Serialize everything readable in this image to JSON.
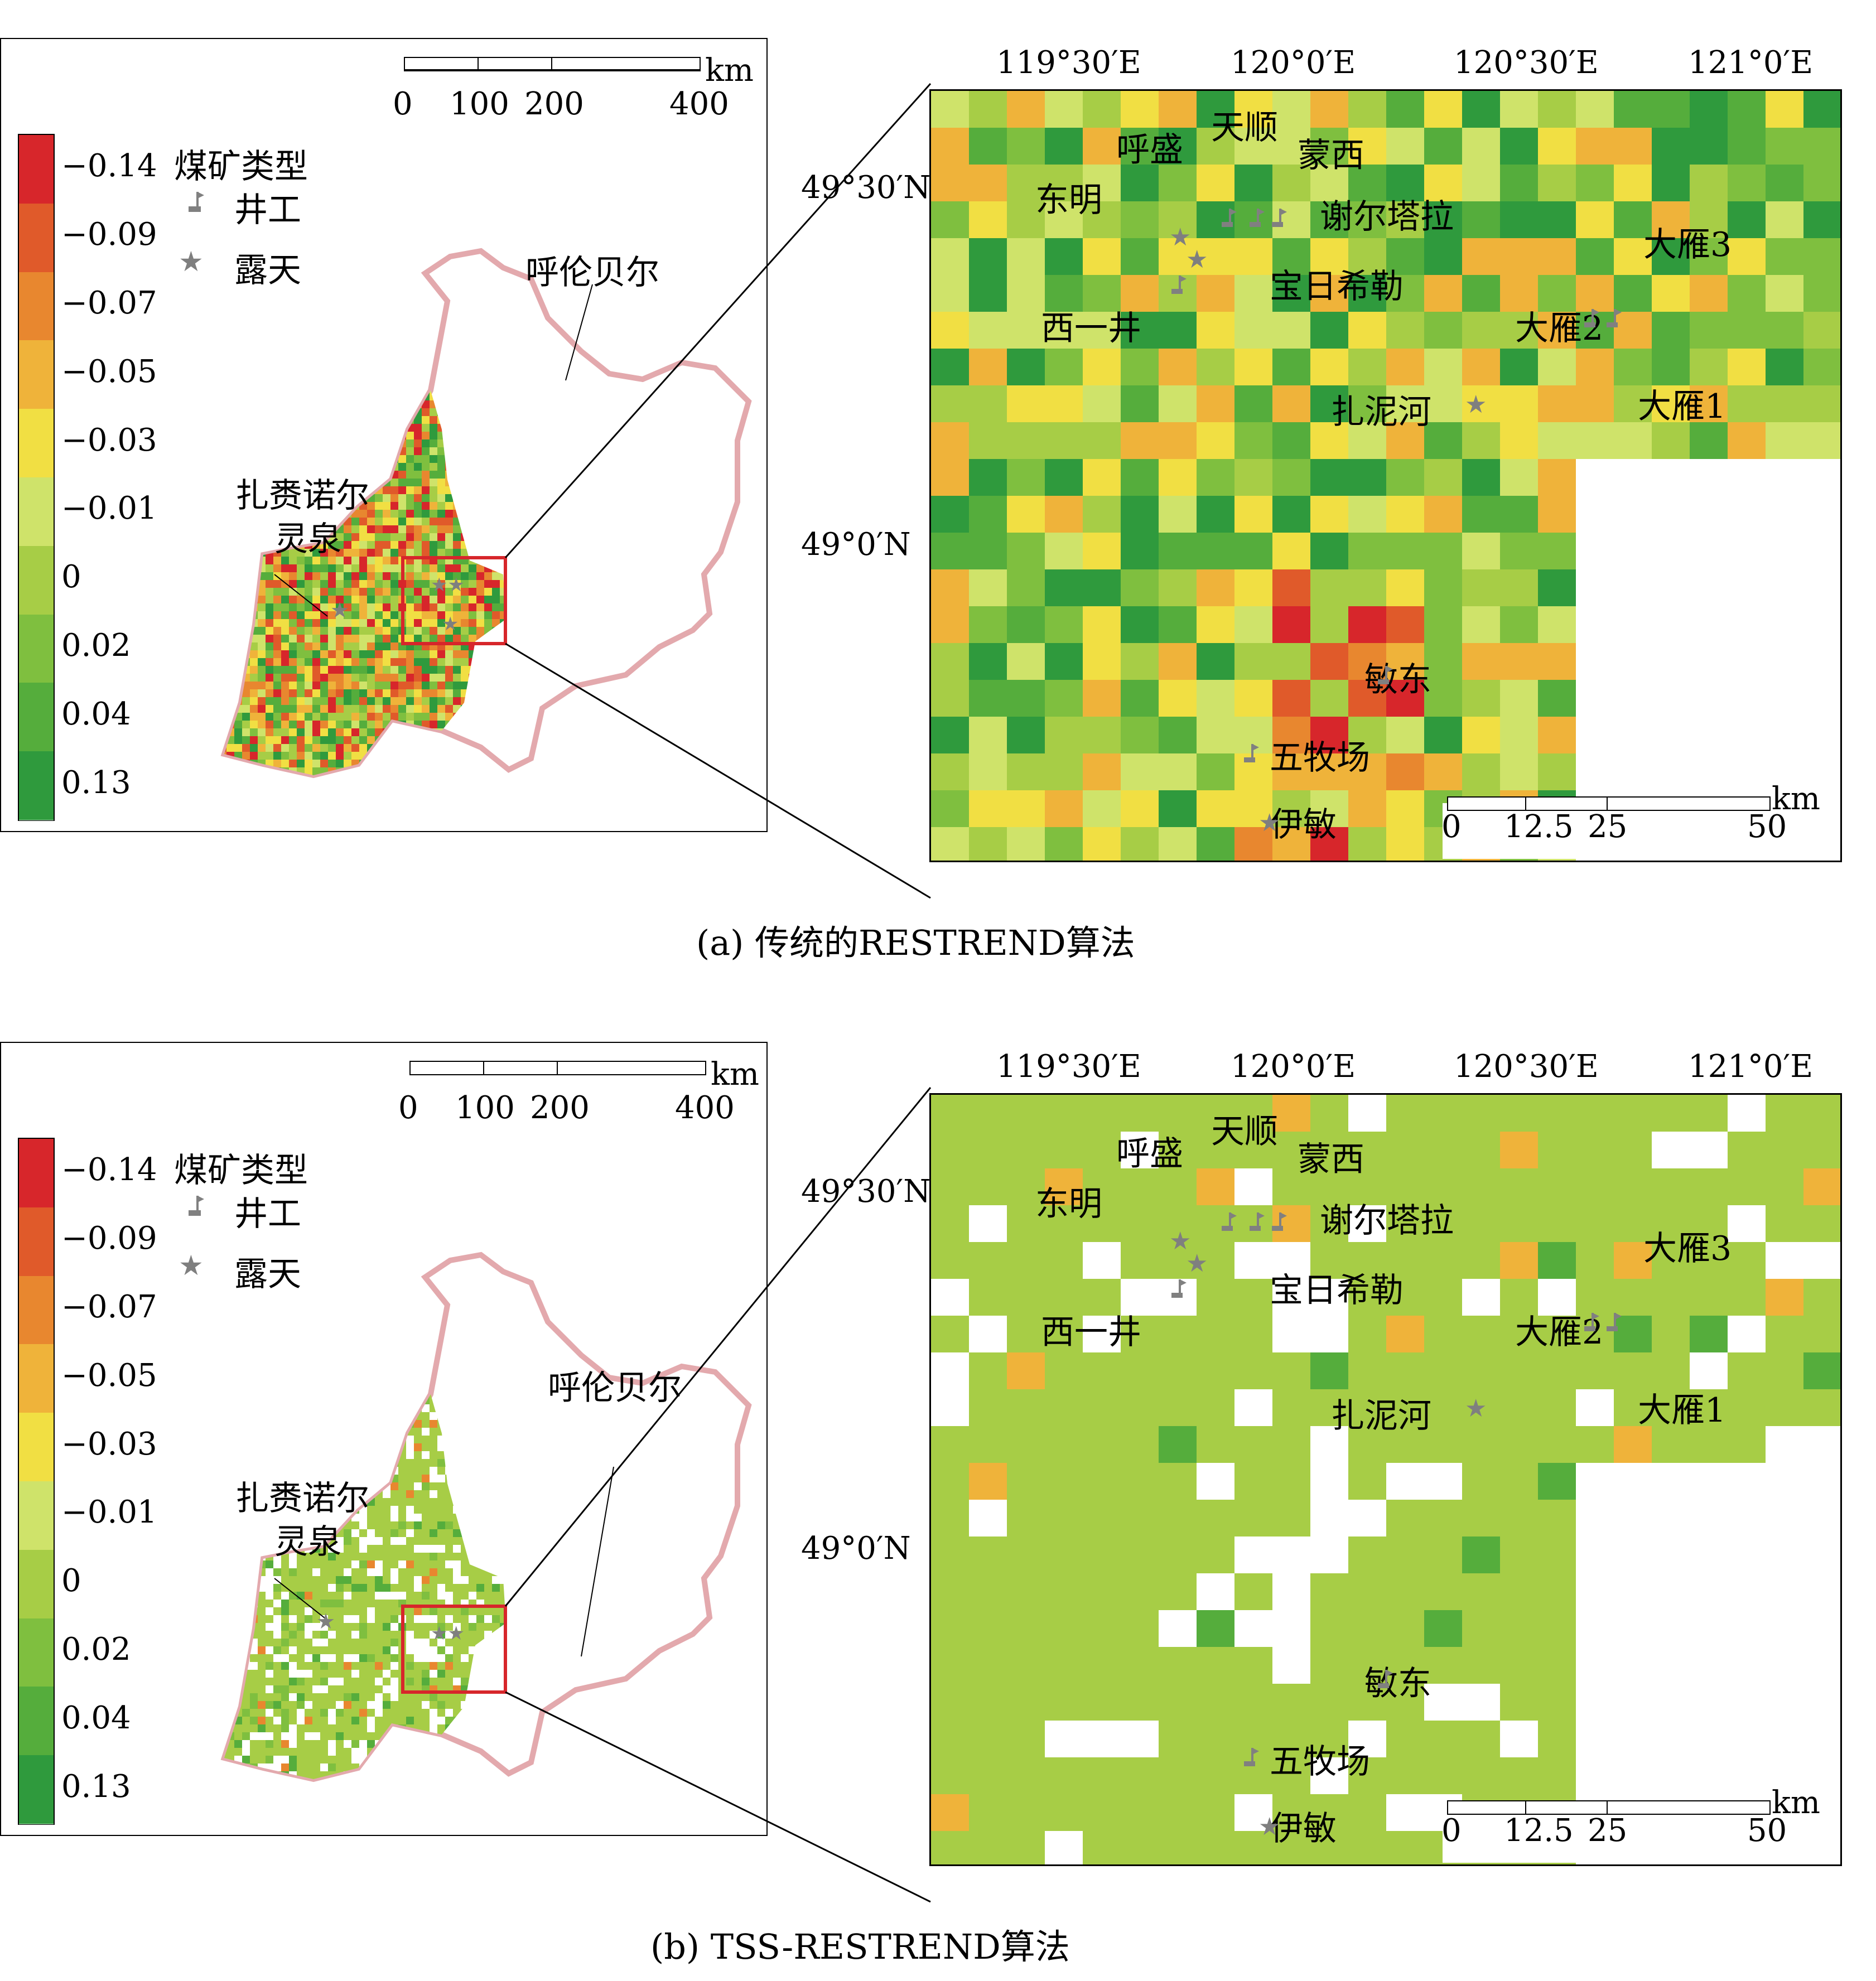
{
  "legend": {
    "title": "煤矿类型",
    "values": [
      "−0.14",
      "−0.09",
      "−0.07",
      "−0.05",
      "−0.03",
      "−0.01",
      "0",
      "0.02",
      "0.04",
      "0.13"
    ],
    "colors": [
      "#d7262b",
      "#e05a2a",
      "#e8872f",
      "#efb33a",
      "#f1df43",
      "#cfe36a",
      "#a7cd46",
      "#7fbf3f",
      "#55ad3c",
      "#2f9a3d"
    ],
    "mine_types": [
      {
        "icon": "underground-mine-flag-icon",
        "label": "井工"
      },
      {
        "icon": "open-pit-star-icon",
        "label": "露天"
      }
    ]
  },
  "overview": {
    "region_label": "呼伦贝尔",
    "site_label_line1": "扎赉诺尔",
    "site_label_line2": "灵泉",
    "scale": {
      "ticks": [
        "0",
        "100",
        "200",
        "400"
      ],
      "unit": "km"
    }
  },
  "zoom": {
    "lon_labels": [
      "119°30′E",
      "120°0′E",
      "120°30′E",
      "121°0′E"
    ],
    "lat_labels": [
      "49°30′N",
      "49°0′N"
    ],
    "scale": {
      "ticks": [
        "0",
        "12.5",
        "25",
        "50"
      ],
      "unit": "km"
    },
    "mines": {
      "hu_sheng": "呼盛",
      "tian_shun": "天顺",
      "meng_xi": "蒙西",
      "dong_ming": "东明",
      "xie_er_ta_la": "谢尔塔拉",
      "bao_ri_xi_le": "宝日希勒",
      "xi_yi_jing": "西一井",
      "da_yan_3": "大雁3",
      "da_yan_2": "大雁2",
      "da_yan_1": "大雁1",
      "zha_ni_he": "扎泥河",
      "min_dong": "敏东",
      "wu_mu_chang": "五牧场",
      "yi_min": "伊敏"
    }
  },
  "panels": [
    {
      "id": "a",
      "caption": "(a) 传统的RESTREND算法"
    },
    {
      "id": "b",
      "caption": "(b) TSS-RESTREND算法"
    }
  ]
}
